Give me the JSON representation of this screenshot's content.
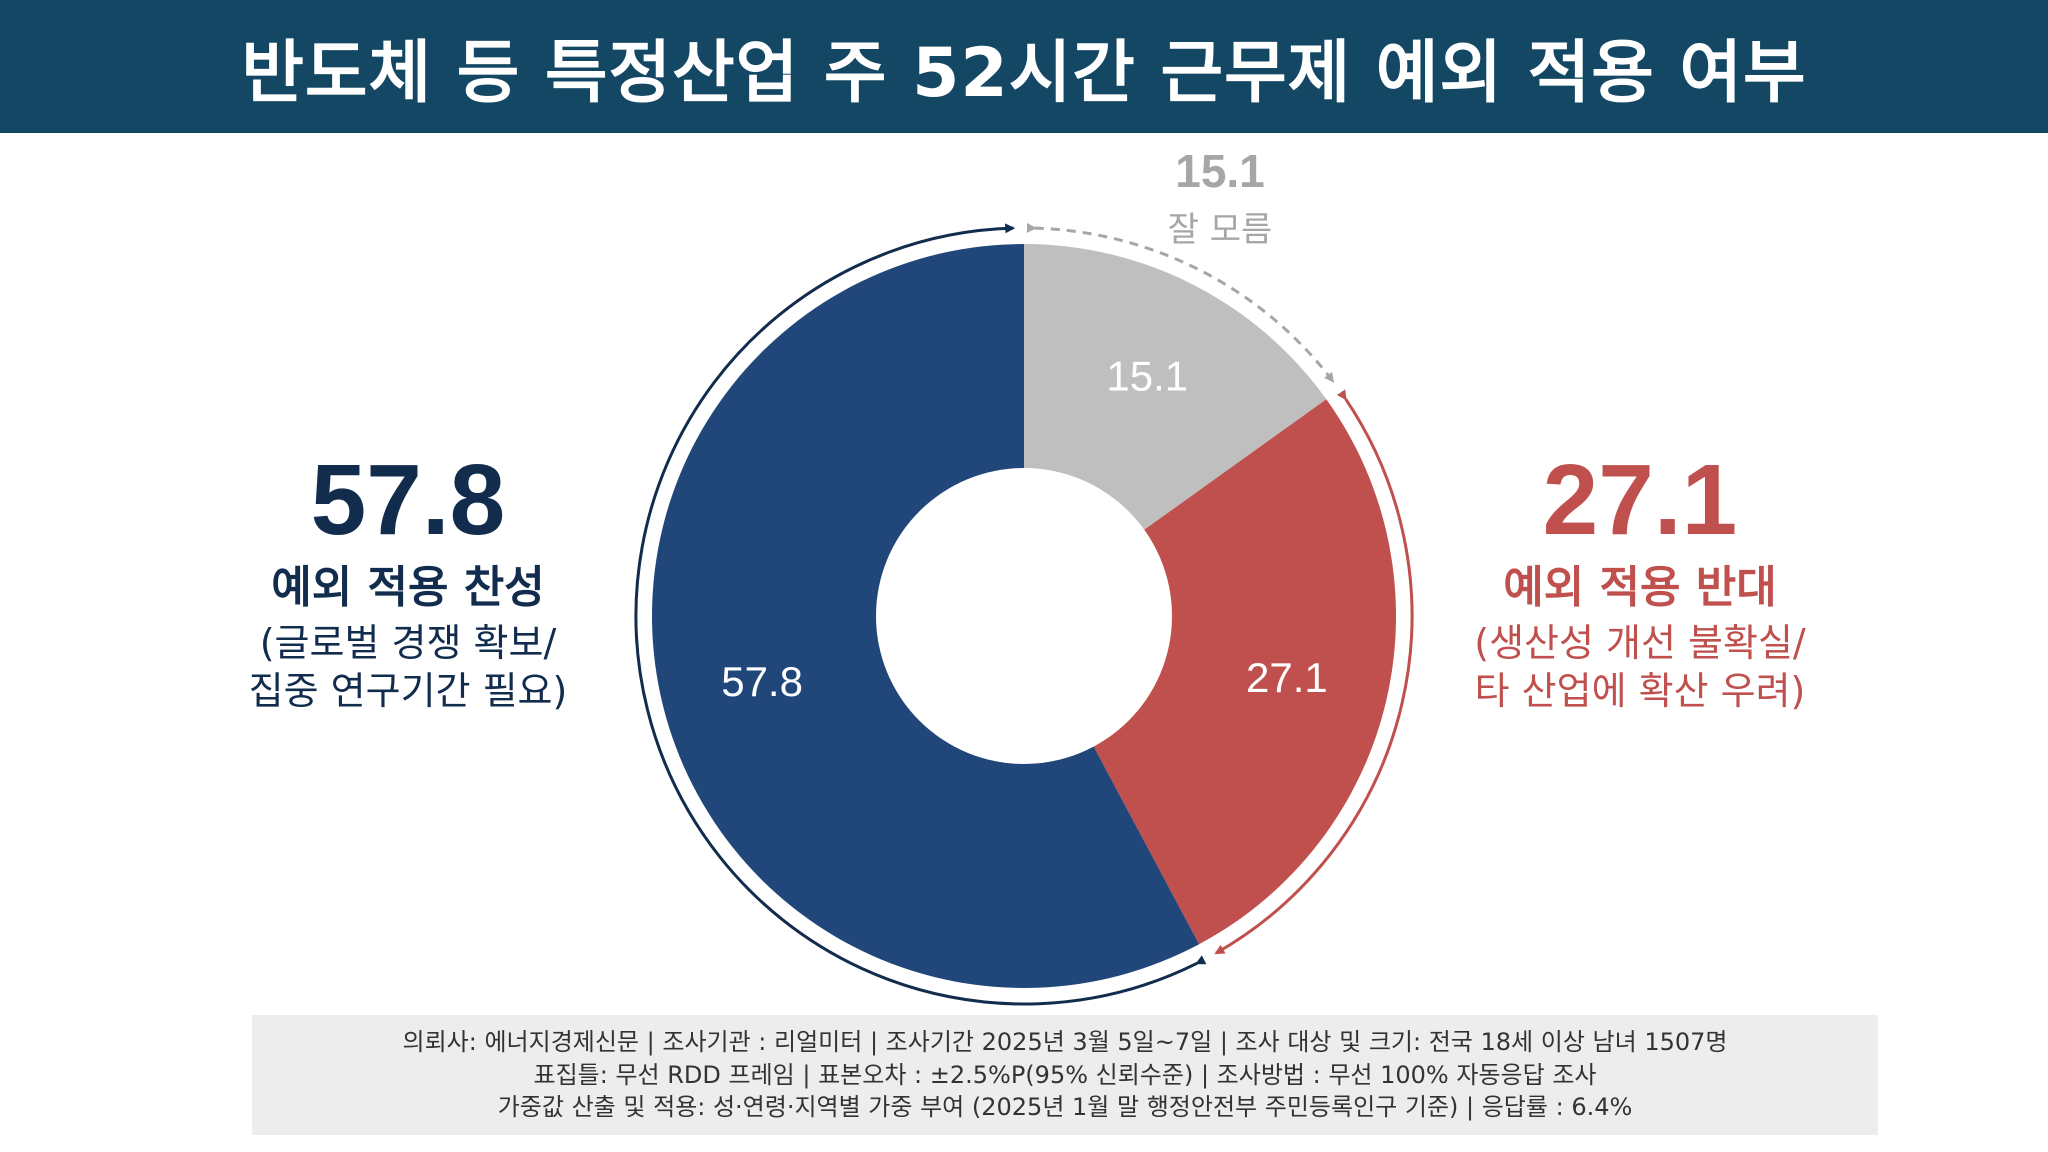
{
  "title": "반도체 등 특정산업 주 52시간 근무제 예외 적용 여부",
  "colors": {
    "header_bg": "#134763",
    "favor": "#21477a",
    "oppose": "#c0504d",
    "unknown": "#bfbfbf",
    "favor_text": "#122c4e",
    "unknown_text": "#a6a6a6"
  },
  "chart_data": {
    "type": "pie",
    "donut": true,
    "slices": [
      {
        "name": "잘 모름",
        "value": 15.1,
        "label": "15.1"
      },
      {
        "name": "예외 적용 반대",
        "value": 27.1,
        "label": "27.1"
      },
      {
        "name": "예외 적용 찬성",
        "value": 57.8,
        "label": "57.8"
      }
    ],
    "start": "12 o'clock",
    "direction": "clockwise"
  },
  "callouts": {
    "favor": {
      "value": "57.8",
      "label": "예외 적용 찬성",
      "reason_line1": "(글로벌 경쟁 확보/",
      "reason_line2": "집중 연구기간 필요)"
    },
    "oppose": {
      "value": "27.1",
      "label": "예외 적용 반대",
      "reason_line1": "(생산성 개선 불확실/",
      "reason_line2": "타 산업에 확산 우려)"
    },
    "unknown": {
      "value": "15.1",
      "label": "잘 모름"
    }
  },
  "footer": {
    "line1": "의뢰사: 에너지경제신문 | 조사기관 : 리얼미터  |  조사기간 2025년 3월 5일~7일 | 조사 대상 및 크기: 전국 18세 이상 남녀 1507명",
    "line2": "표집틀: 무선 RDD 프레임 | 표본오차 : ±2.5%P(95% 신뢰수준) | 조사방법 : 무선 100% 자동응답 조사",
    "line3": "가중값 산출 및 적용: 성·연령·지역별 가중 부여 (2025년 1월 말 행정안전부 주민등록인구 기준) | 응답률 : 6.4%"
  }
}
